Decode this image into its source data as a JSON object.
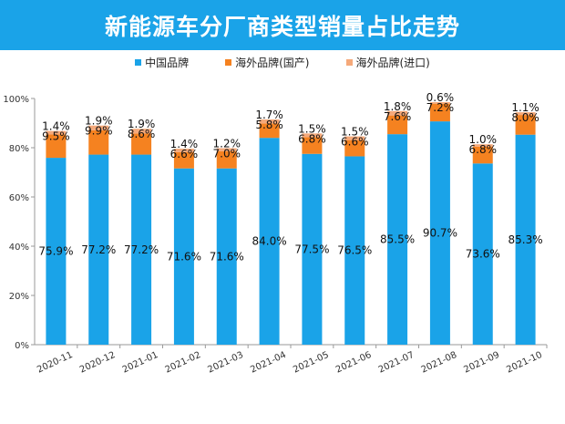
{
  "title": "新能源车分厂商类型销量占比走势",
  "chart_data": {
    "type": "bar",
    "stacked": true,
    "title": "新能源车分厂商类型销量占比走势",
    "categories": [
      "2020-11",
      "2020-12",
      "2021-01",
      "2021-02",
      "2021-03",
      "2021-04",
      "2021-05",
      "2021-06",
      "2021-07",
      "2021-08",
      "2021-09",
      "2021-10"
    ],
    "series": [
      {
        "name": "中国品牌",
        "color": "#1aa3e8",
        "values": [
          75.9,
          77.2,
          77.2,
          71.6,
          71.6,
          84.0,
          77.5,
          76.5,
          85.5,
          90.7,
          73.6,
          85.3
        ]
      },
      {
        "name": "海外品牌(国产)",
        "color": "#f58220",
        "values": [
          9.5,
          9.9,
          8.6,
          6.6,
          7.0,
          5.8,
          6.8,
          6.6,
          7.6,
          7.2,
          6.8,
          8.0
        ]
      },
      {
        "name": "海外品牌(进口)",
        "color": "#f5a97a",
        "values": [
          1.4,
          1.9,
          1.9,
          1.4,
          1.2,
          1.7,
          1.5,
          1.5,
          1.8,
          0.6,
          1.0,
          1.1
        ]
      }
    ],
    "yticks": [
      "0%",
      "20%",
      "40%",
      "60%",
      "80%",
      "100%"
    ],
    "ylim": [
      0,
      100
    ],
    "xlabel": "",
    "ylabel": "",
    "legend_position": "top"
  }
}
